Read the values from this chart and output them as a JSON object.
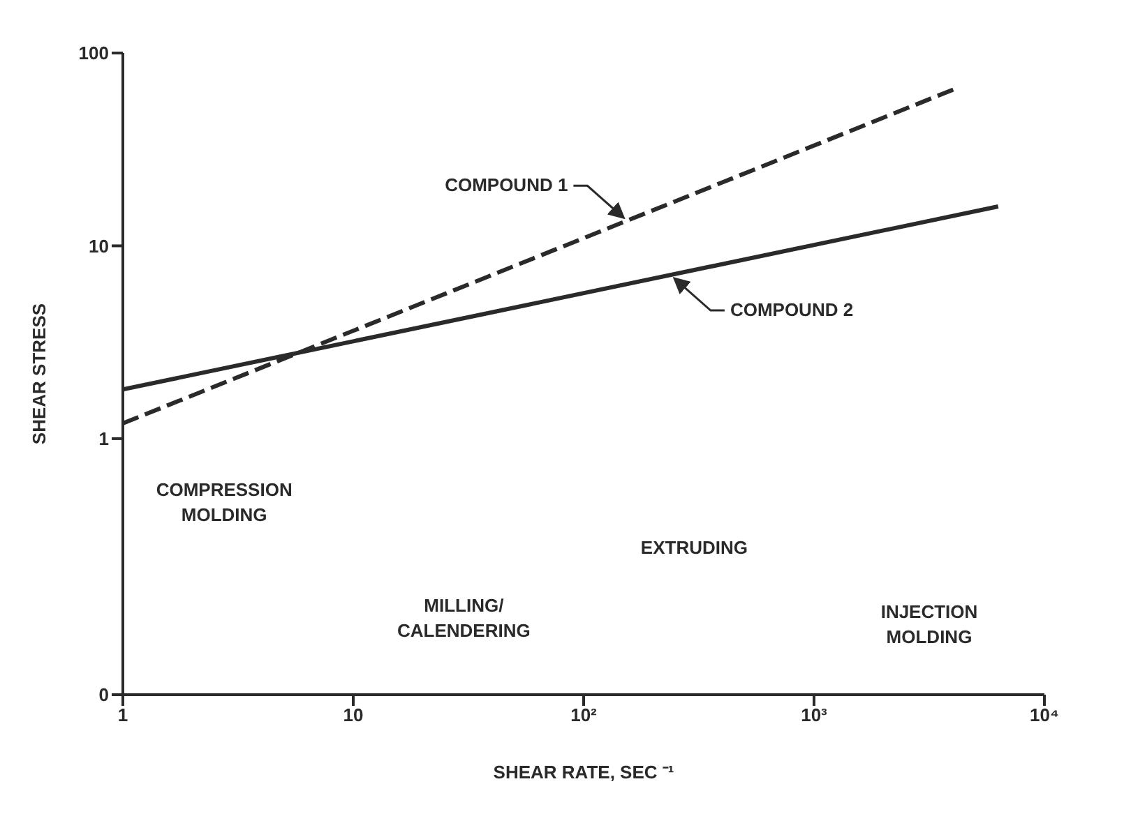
{
  "chart_data": {
    "type": "line",
    "xlabel": "SHEAR RATE, SEC ⁻¹",
    "ylabel": "SHEAR STRESS",
    "log": "xy",
    "marker": "none",
    "xlim": [
      1,
      10000
    ],
    "xticks": [
      1,
      10,
      {
        "value": 100,
        "label": "10²"
      },
      {
        "value": 1000,
        "label": "10³"
      },
      {
        "value": 10000,
        "label": "10⁴"
      }
    ],
    "ylim": [
      0.047,
      100
    ],
    "yticks": [
      {
        "value": 0.047,
        "label": "0"
      },
      1,
      10,
      100
    ],
    "series": [
      {
        "name": "COMPOUND 1",
        "color": "#2a2a2a",
        "x": [
          1,
          4200
        ],
        "values": [
          1.2,
          66
        ],
        "line_style": "dashed"
      },
      {
        "name": "COMPOUND 2",
        "color": "#2a2a2a",
        "x": [
          1,
          6300
        ],
        "values": [
          1.8,
          16
        ],
        "line_style": "solid"
      }
    ],
    "annotations": [
      "COMPRESSION MOLDING",
      "MILLING/ CALENDERING",
      "EXTRUDING",
      "INJECTION MOLDING"
    ]
  }
}
